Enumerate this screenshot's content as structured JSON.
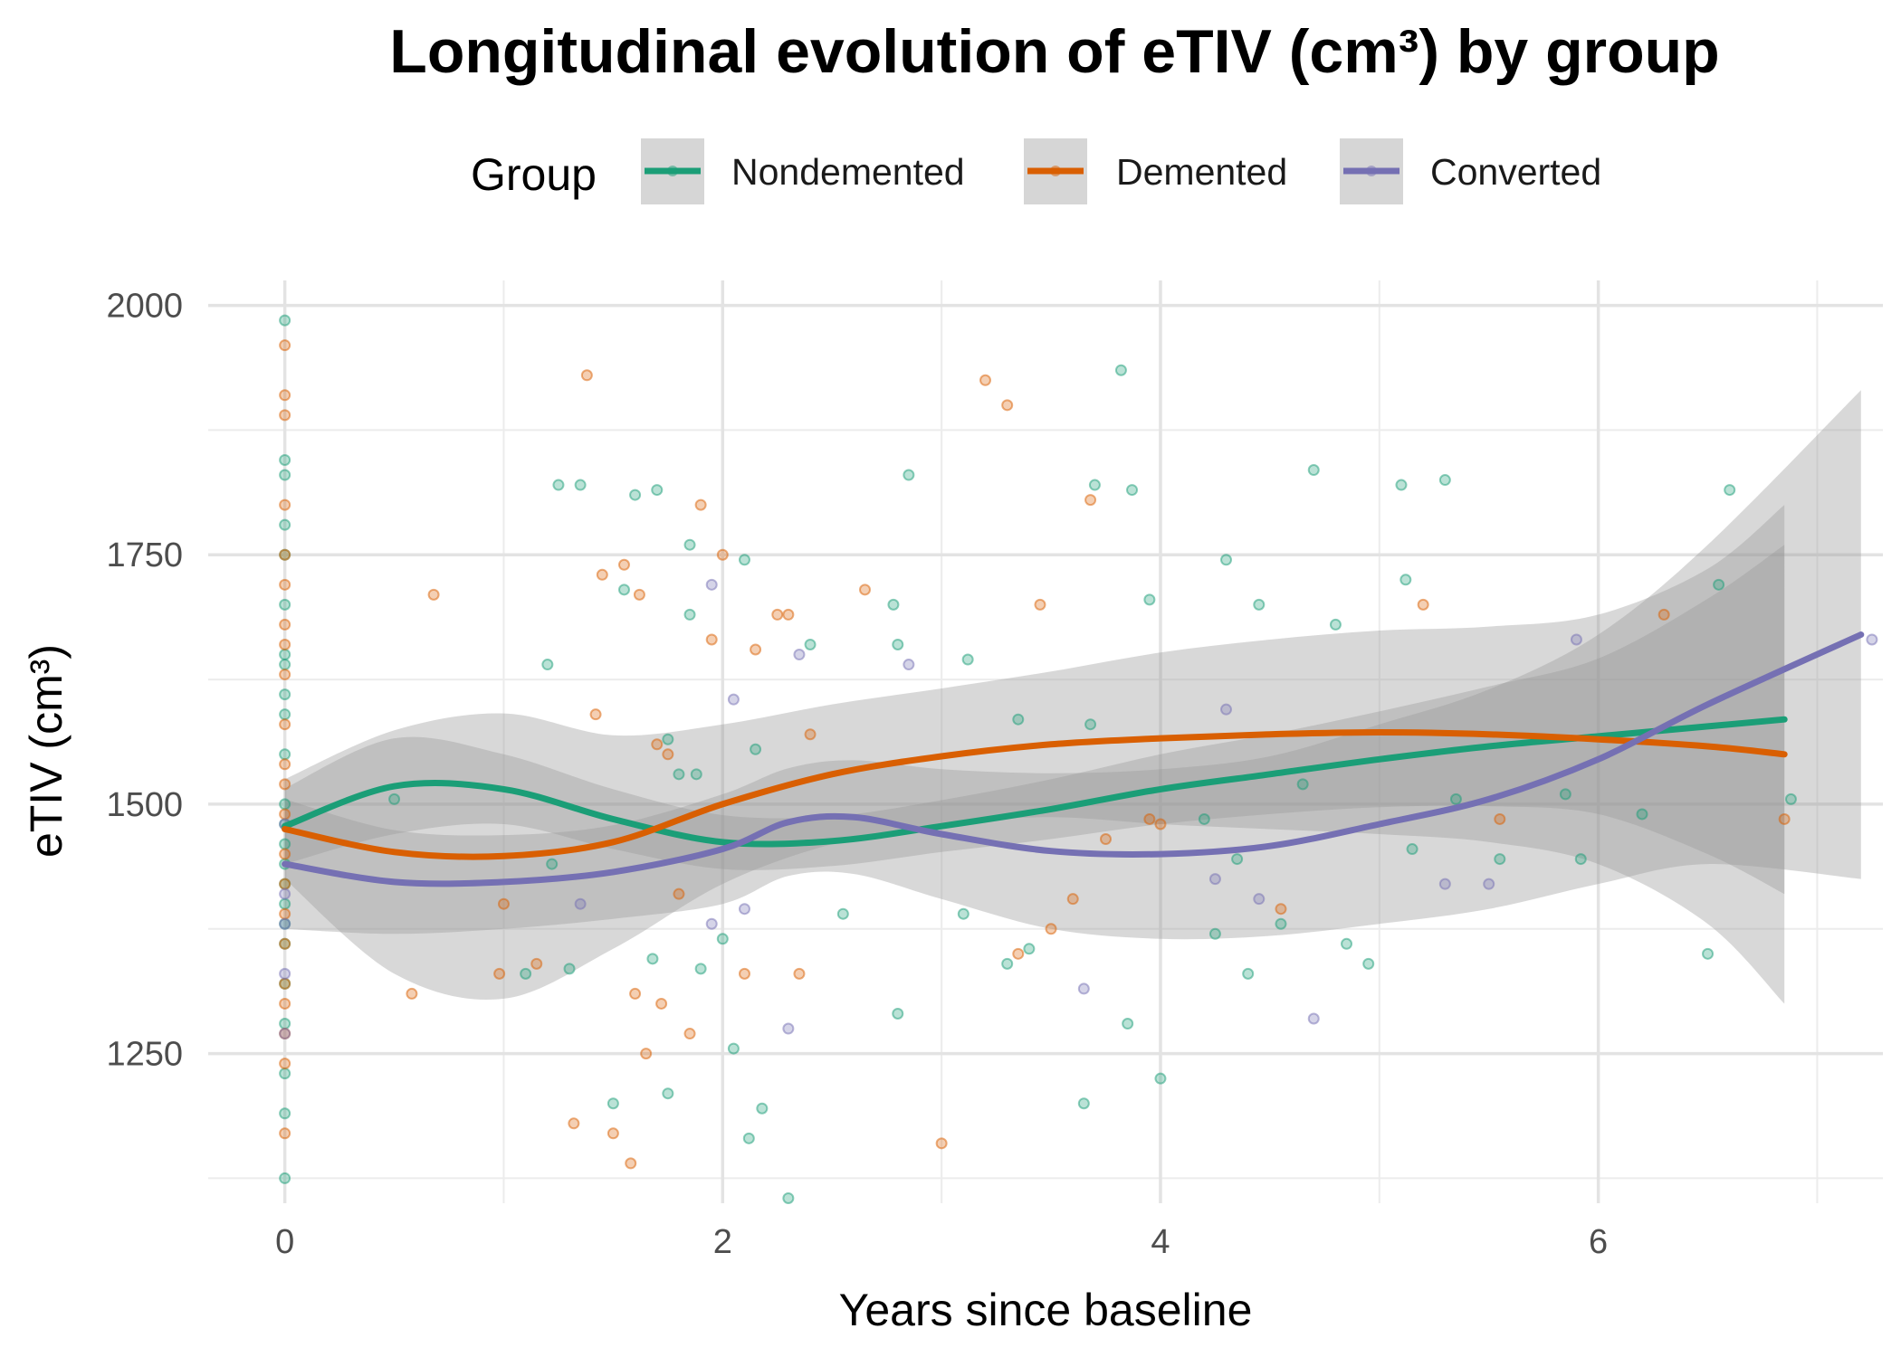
{
  "chart_data": {
    "type": "scatter",
    "title": "Longitudinal evolution of eTIV (cm³) by group",
    "xlabel": "Years since baseline",
    "ylabel": "eTIV (cm³)",
    "xlim": [
      -0.35,
      7.3
    ],
    "ylim": [
      1100,
      2025
    ],
    "x_ticks": [
      0,
      2,
      4,
      6
    ],
    "y_ticks": [
      1250,
      1500,
      1750,
      2000
    ],
    "grid": true,
    "legend": {
      "title": "Group",
      "position": "top"
    },
    "series": [
      {
        "name": "Nondemented",
        "color": "#1B9E77",
        "smooth": {
          "x": [
            0,
            0.5,
            1.0,
            1.5,
            2.0,
            2.5,
            3.0,
            3.5,
            4.0,
            4.5,
            5.0,
            5.5,
            6.0,
            6.5,
            6.85
          ],
          "y": [
            1478,
            1518,
            1515,
            1485,
            1462,
            1463,
            1478,
            1495,
            1515,
            1530,
            1545,
            1558,
            1568,
            1578,
            1585
          ],
          "ci_lower": [
            1440,
            1470,
            1480,
            1455,
            1435,
            1438,
            1452,
            1465,
            1480,
            1490,
            1497,
            1498,
            1490,
            1450,
            1410
          ],
          "ci_upper": [
            1516,
            1566,
            1550,
            1515,
            1489,
            1488,
            1504,
            1525,
            1550,
            1570,
            1593,
            1618,
            1646,
            1706,
            1760
          ]
        },
        "points": {
          "x": [
            0,
            0,
            0,
            0,
            0,
            0,
            0,
            0,
            0,
            0,
            0,
            0,
            0,
            0,
            0,
            0,
            0,
            0,
            0,
            0,
            0,
            0,
            0,
            0,
            0.5,
            1.1,
            1.2,
            1.22,
            1.25,
            1.3,
            1.35,
            1.5,
            1.55,
            1.6,
            1.68,
            1.7,
            1.75,
            1.75,
            1.8,
            1.85,
            1.85,
            1.88,
            1.9,
            2.0,
            2.05,
            2.1,
            2.12,
            2.15,
            2.18,
            2.3,
            2.4,
            2.55,
            2.78,
            2.8,
            2.8,
            2.85,
            3.1,
            3.12,
            3.3,
            3.35,
            3.4,
            3.65,
            3.68,
            3.7,
            3.82,
            3.85,
            3.87,
            3.95,
            4.0,
            4.2,
            4.25,
            4.3,
            4.35,
            4.4,
            4.45,
            4.55,
            4.65,
            4.7,
            4.8,
            4.85,
            4.95,
            5.1,
            5.12,
            5.15,
            5.3,
            5.35,
            5.55,
            5.85,
            5.92,
            6.2,
            6.5,
            6.55,
            6.6,
            6.88
          ],
          "y": [
            1985,
            1845,
            1830,
            1780,
            1750,
            1700,
            1650,
            1640,
            1610,
            1590,
            1550,
            1500,
            1480,
            1460,
            1440,
            1420,
            1400,
            1380,
            1360,
            1320,
            1280,
            1230,
            1190,
            1125,
            1505,
            1330,
            1640,
            1440,
            1820,
            1335,
            1820,
            1200,
            1715,
            1810,
            1345,
            1815,
            1210,
            1565,
            1530,
            1690,
            1760,
            1530,
            1335,
            1365,
            1255,
            1745,
            1165,
            1555,
            1195,
            1105,
            1660,
            1390,
            1700,
            1660,
            1290,
            1830,
            1390,
            1645,
            1340,
            1585,
            1355,
            1200,
            1580,
            1820,
            1935,
            1280,
            1815,
            1705,
            1225,
            1485,
            1370,
            1745,
            1445,
            1330,
            1700,
            1380,
            1520,
            1835,
            1680,
            1360,
            1340,
            1820,
            1725,
            1455,
            1825,
            1505,
            1445,
            1510,
            1445,
            1490,
            1350,
            1720,
            1815,
            1505
          ]
        }
      },
      {
        "name": "Demented",
        "color": "#D95F02",
        "smooth": {
          "x": [
            0,
            0.5,
            1.0,
            1.5,
            2.0,
            2.5,
            3.0,
            3.5,
            4.0,
            4.5,
            5.0,
            5.5,
            6.0,
            6.5,
            6.85
          ],
          "y": [
            1475,
            1452,
            1448,
            1462,
            1500,
            1530,
            1548,
            1560,
            1566,
            1570,
            1572,
            1570,
            1565,
            1558,
            1550
          ],
          "ci_lower": [
            1425,
            1330,
            1305,
            1355,
            1420,
            1460,
            1480,
            1487,
            1480,
            1475,
            1470,
            1462,
            1440,
            1380,
            1300
          ],
          "ci_upper": [
            1525,
            1574,
            1591,
            1569,
            1580,
            1600,
            1616,
            1633,
            1652,
            1665,
            1674,
            1678,
            1690,
            1736,
            1800
          ]
        },
        "points": {
          "x": [
            0,
            0,
            0,
            0,
            0,
            0,
            0,
            0,
            0,
            0,
            0,
            0,
            0,
            0,
            0,
            0,
            0,
            0,
            0,
            0,
            0,
            0,
            0.58,
            0.68,
            0.98,
            1.0,
            1.15,
            1.32,
            1.38,
            1.42,
            1.45,
            1.5,
            1.55,
            1.58,
            1.6,
            1.62,
            1.65,
            1.7,
            1.72,
            1.75,
            1.8,
            1.85,
            1.9,
            1.95,
            2.0,
            2.1,
            2.15,
            2.25,
            2.3,
            2.35,
            2.4,
            2.65,
            3.0,
            3.2,
            3.3,
            3.35,
            3.45,
            3.5,
            3.6,
            3.68,
            3.75,
            3.95,
            4.0,
            4.55,
            5.2,
            5.55,
            6.3,
            6.85
          ],
          "y": [
            1960,
            1910,
            1890,
            1800,
            1750,
            1720,
            1680,
            1660,
            1630,
            1580,
            1540,
            1520,
            1490,
            1450,
            1420,
            1390,
            1360,
            1320,
            1300,
            1270,
            1240,
            1170,
            1310,
            1710,
            1330,
            1400,
            1340,
            1180,
            1930,
            1590,
            1730,
            1170,
            1740,
            1140,
            1310,
            1710,
            1250,
            1560,
            1300,
            1550,
            1410,
            1270,
            1800,
            1665,
            1750,
            1330,
            1655,
            1690,
            1690,
            1330,
            1570,
            1715,
            1160,
            1925,
            1900,
            1350,
            1700,
            1375,
            1405,
            1805,
            1465,
            1485,
            1480,
            1395,
            1700,
            1485,
            1690,
            1485
          ]
        }
      },
      {
        "name": "Converted",
        "color": "#7570B3",
        "smooth": {
          "x": [
            0,
            0.5,
            1.0,
            1.5,
            2.0,
            2.3,
            2.6,
            3.0,
            3.5,
            4.0,
            4.5,
            5.0,
            5.5,
            6.0,
            6.5,
            7.2
          ],
          "y": [
            1440,
            1422,
            1422,
            1432,
            1455,
            1482,
            1487,
            1470,
            1453,
            1450,
            1458,
            1480,
            1505,
            1545,
            1600,
            1670
          ],
          "ci_lower": [
            1375,
            1370,
            1375,
            1385,
            1400,
            1428,
            1430,
            1405,
            1375,
            1365,
            1368,
            1380,
            1395,
            1420,
            1440,
            1425
          ],
          "ci_upper": [
            1505,
            1474,
            1469,
            1479,
            1510,
            1536,
            1544,
            1535,
            1531,
            1535,
            1548,
            1580,
            1615,
            1670,
            1760,
            1915
          ]
        },
        "points": {
          "x": [
            0,
            0,
            0,
            0,
            0,
            1.35,
            1.95,
            1.95,
            2.05,
            2.1,
            2.3,
            2.35,
            2.85,
            3.65,
            4.25,
            4.3,
            4.45,
            4.7,
            5.3,
            5.5,
            5.9,
            7.25
          ],
          "y": [
            1480,
            1410,
            1380,
            1330,
            1270,
            1400,
            1720,
            1380,
            1605,
            1395,
            1275,
            1650,
            1640,
            1315,
            1425,
            1595,
            1405,
            1285,
            1420,
            1420,
            1665,
            1665
          ]
        }
      }
    ]
  }
}
